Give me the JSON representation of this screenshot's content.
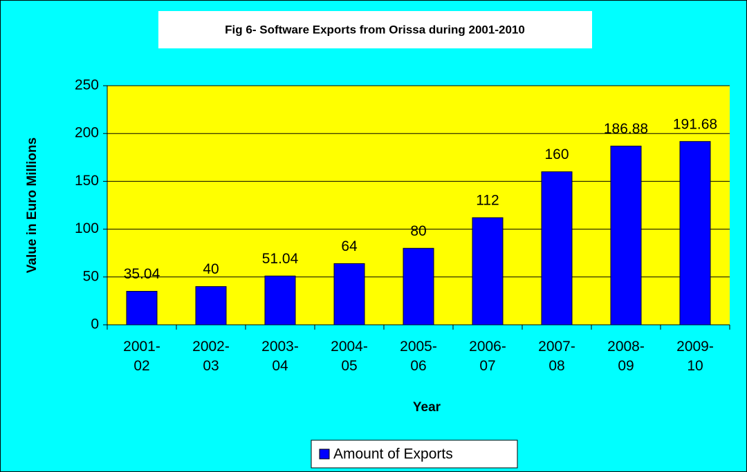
{
  "chart_data": {
    "type": "bar",
    "title": "Fig 6- Software Exports from Orissa during 2001-2010",
    "x_label": "Year",
    "y_label": "Value in Euro Millions",
    "categories": [
      "2001-02",
      "2002-03",
      "2003-04",
      "2004-05",
      "2005-06",
      "2006-07",
      "2007-08",
      "2008-09",
      "2009-10"
    ],
    "series": [
      {
        "name": "Amount of Exports",
        "color": "#0000ff",
        "values": [
          35.04,
          40,
          51.04,
          64,
          80,
          112,
          160,
          186.88,
          191.68
        ]
      }
    ],
    "ylim": [
      0,
      250
    ],
    "yticks": [
      0,
      50,
      100,
      150,
      200,
      250
    ],
    "grid": true,
    "legend": "bottom"
  }
}
